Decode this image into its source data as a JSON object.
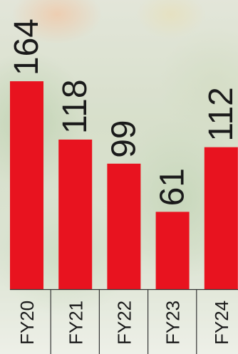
{
  "chart_data": {
    "type": "bar",
    "categories": [
      "FY20",
      "FY21",
      "FY22",
      "FY23",
      "FY24"
    ],
    "values": [
      164,
      118,
      99,
      61,
      112
    ],
    "ylim": [
      0,
      180
    ],
    "bar_color": "#e8131f",
    "label_color": "#1a1a1a",
    "axis_color": "#333333",
    "grid": false,
    "title": "",
    "xlabel": "",
    "ylabel": ""
  }
}
